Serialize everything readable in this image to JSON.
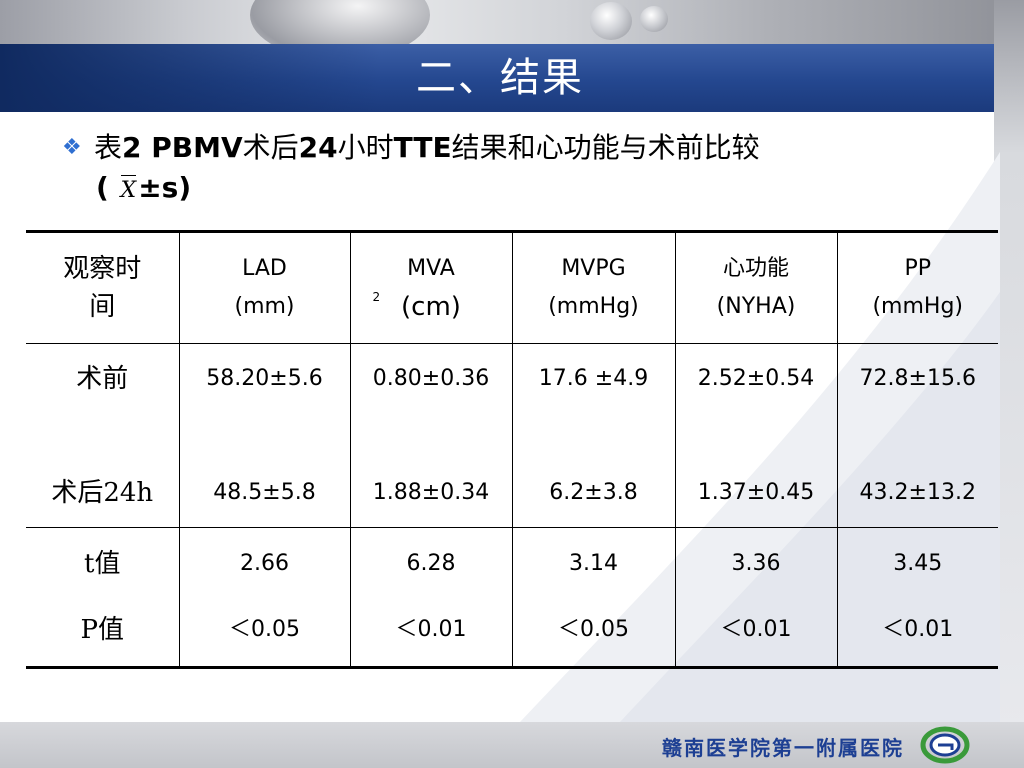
{
  "title": "二、结果",
  "subtitle": {
    "line1_prefix": "表",
    "line1_bold": "2  PBMV",
    "line1_a": "术后",
    "line1_b": "24",
    "line1_c": "小时",
    "line1_d": "TTE",
    "line1_e": "结果和心功能与术前比较",
    "line2_open": "(",
    "line2_x": "X",
    "line2_rest": "±s)"
  },
  "table": {
    "headers": [
      [
        "观察时",
        "间"
      ],
      [
        "LAD",
        "(mm)"
      ],
      [
        "MVA",
        "(cm",
        "2",
        ")"
      ],
      [
        "MVPG",
        "(mmHg)"
      ],
      [
        "心功能",
        "(NYHA)"
      ],
      [
        "PP",
        "(mmHg)"
      ]
    ],
    "rows": [
      {
        "label": "术前",
        "cells": [
          "58.20±5.6",
          "0.80±0.36",
          "17.6 ±4.9",
          "2.52±0.54",
          "72.8±15.6"
        ]
      },
      {
        "label": "术后24h",
        "cells": [
          "48.5±5.8",
          "1.88±0.34",
          "6.2±3.8",
          "1.37±0.45",
          "43.2±13.2"
        ]
      },
      {
        "label": "t值",
        "cells": [
          "2.66",
          "6.28",
          "3.14",
          "3.36",
          "3.45"
        ]
      },
      {
        "label": "P值",
        "cells": [
          "＜0.05",
          "＜0.01",
          "＜0.05",
          "＜0.01",
          "＜0.01"
        ]
      }
    ]
  },
  "footer": {
    "institution": "赣南医学院第一附属医院"
  },
  "colors": {
    "title_band": "#24478f",
    "bullet": "#2f6fd1",
    "footer_text": "#1d3f93"
  },
  "icons": {
    "bullet": "diamond-bullet-icon",
    "logo": "hospital-logo-icon"
  }
}
